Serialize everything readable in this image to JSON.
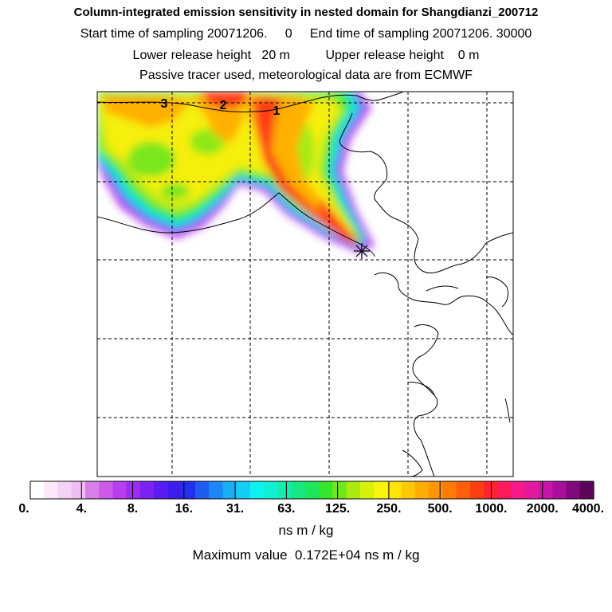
{
  "header": {
    "title": "Column-integrated emission sensitivity in nested domain for Shangdianzi_200712",
    "line2": "Start time of sampling 20071206.     0     End time of sampling 20071206. 30000",
    "line3": "Lower release height   20 m          Upper release height    0 m",
    "line4": "Passive tracer used, meteorological data are from ECMWF"
  },
  "chart_data": {
    "type": "heatmap",
    "title": "Column-integrated emission sensitivity in nested domain for Shangdianzi_200712",
    "colorbar": {
      "tick_labels": [
        "0.",
        "4.",
        "8.",
        "16.",
        "31.",
        "63.",
        "125.",
        "250.",
        "500.",
        "1000.",
        "2000.",
        "4000."
      ],
      "units": "ns m / kg",
      "colors": [
        "#ffffff",
        "#fbe8fb",
        "#f5d3f6",
        "#efbdf1",
        "#d97ee9",
        "#cc5ae6",
        "#b83cf0",
        "#9a2bf0",
        "#7c22f2",
        "#5a1cf3",
        "#3d1cf0",
        "#2430ee",
        "#1f5cf2",
        "#1c86f4",
        "#17aef2",
        "#12cef2",
        "#0ef2ee",
        "#0ef0cf",
        "#14ecaa",
        "#16e883",
        "#1ee65a",
        "#34e62c",
        "#72e61a",
        "#a9ea12",
        "#d7f00e",
        "#f6f50b",
        "#ffe40a",
        "#ffc807",
        "#ffad05",
        "#ff9505",
        "#ff7c06",
        "#ff5e0b",
        "#ff3e12",
        "#ff2230",
        "#ff1b5a",
        "#f5198a",
        "#e11aa0",
        "#c815a9",
        "#a80f9c",
        "#82087d",
        "#5a0559"
      ]
    },
    "max_value_text": "Maximum value  0.172E+04 ns m / kg",
    "station_marker": "Shangdianzi",
    "track_labels": [
      "3",
      "2",
      "1"
    ],
    "grid": true
  }
}
